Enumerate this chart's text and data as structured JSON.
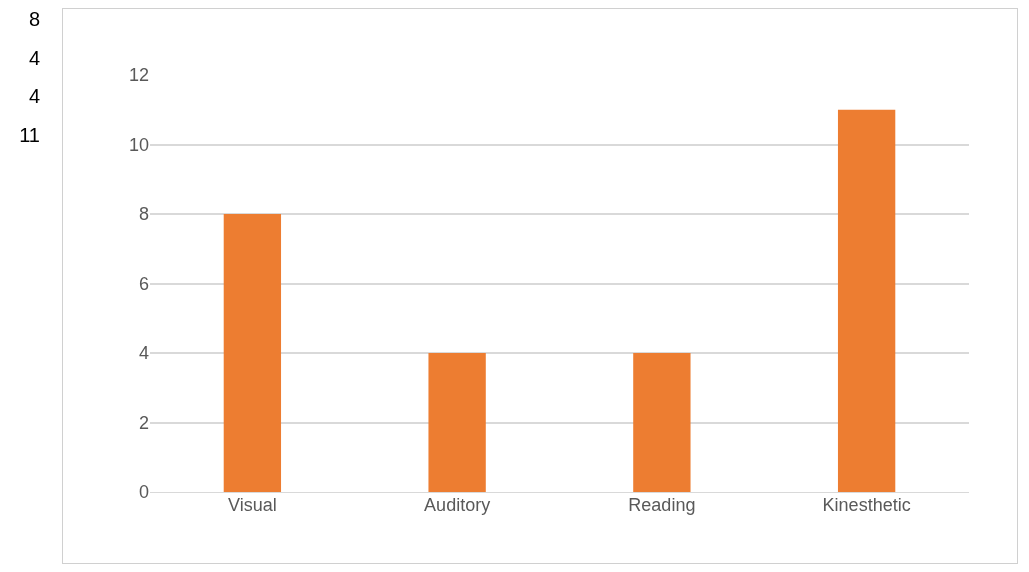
{
  "chart_data": {
    "type": "bar",
    "categories": [
      "Visual",
      "Auditory",
      "Reading",
      "Kinesthetic"
    ],
    "values": [
      8,
      4,
      4,
      11
    ],
    "color": "#ed7d31",
    "ylim": [
      0,
      12
    ],
    "yticks": [
      0,
      2,
      4,
      6,
      8,
      10,
      12
    ],
    "grid": "y",
    "annotations": [
      "8",
      "4",
      "4",
      "11"
    ]
  }
}
